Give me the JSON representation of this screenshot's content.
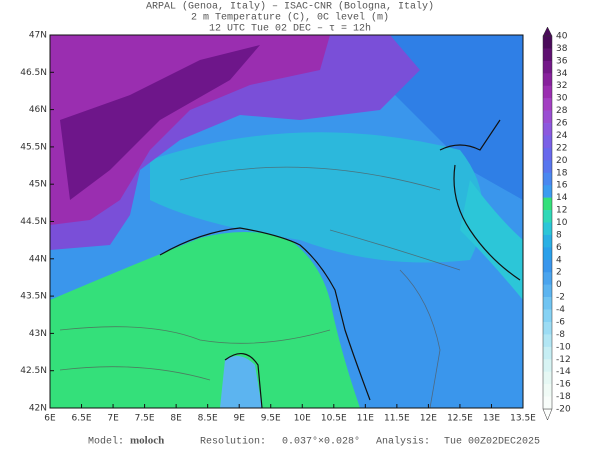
{
  "header": {
    "lines": [
      "ARPAL (Genoa, Italy)  –  ISAC-CNR (Bologna, Italy)",
      "2 m Temperature (C), 0C level (m)",
      "12 UTC Tue 02 DEC  –  τ = 12h"
    ]
  },
  "map": {
    "lat_labels": [
      "47N",
      "46.5N",
      "46N",
      "45.5N",
      "45N",
      "44.5N",
      "44N",
      "43.5N",
      "43N",
      "42.5N",
      "42N"
    ],
    "lon_labels": [
      "6E",
      "6.5E",
      "7E",
      "7.5E",
      "8E",
      "8.5E",
      "9E",
      "9.5E",
      "10E",
      "10.5E",
      "11E",
      "11.5E",
      "12E",
      "12.5E",
      "13E",
      "13.5E"
    ]
  },
  "colorbar": {
    "labels": [
      40,
      38,
      36,
      34,
      32,
      30,
      28,
      26,
      24,
      22,
      20,
      18,
      16,
      14,
      12,
      10,
      8,
      6,
      4,
      2,
      0,
      -2,
      -4,
      -6,
      -8,
      -10,
      -12,
      -14,
      -16,
      -18,
      -20
    ],
    "colors": [
      "#4a0a5a",
      "#5e1070",
      "#731888",
      "#87219c",
      "#9a2eb0",
      "#a33fc2",
      "#9a4ed2",
      "#8c58de",
      "#7a60e6",
      "#6868ec",
      "#5876ee",
      "#4a88f0",
      "#3c9cf0",
      "#34e07a",
      "#30d8b8",
      "#2cc6d8",
      "#2ab0e4",
      "#2aa0ea",
      "#3a96ec",
      "#4aa4ee",
      "#5cb4f0",
      "#70c4f2",
      "#86d2f4",
      "#9cdcf4",
      "#b2e6f4",
      "#c6eef4",
      "#d8f4f4",
      "#e6f8f4",
      "#f0fbf6",
      "#f8fdfa"
    ]
  },
  "footer": {
    "model_label": "Model:",
    "model": "moloch",
    "resolution_label": "Resolution:",
    "resolution": "0.037°×0.028°",
    "analysis_label": "Analysis:",
    "analysis": "Tue 00Z02DEC2025"
  }
}
